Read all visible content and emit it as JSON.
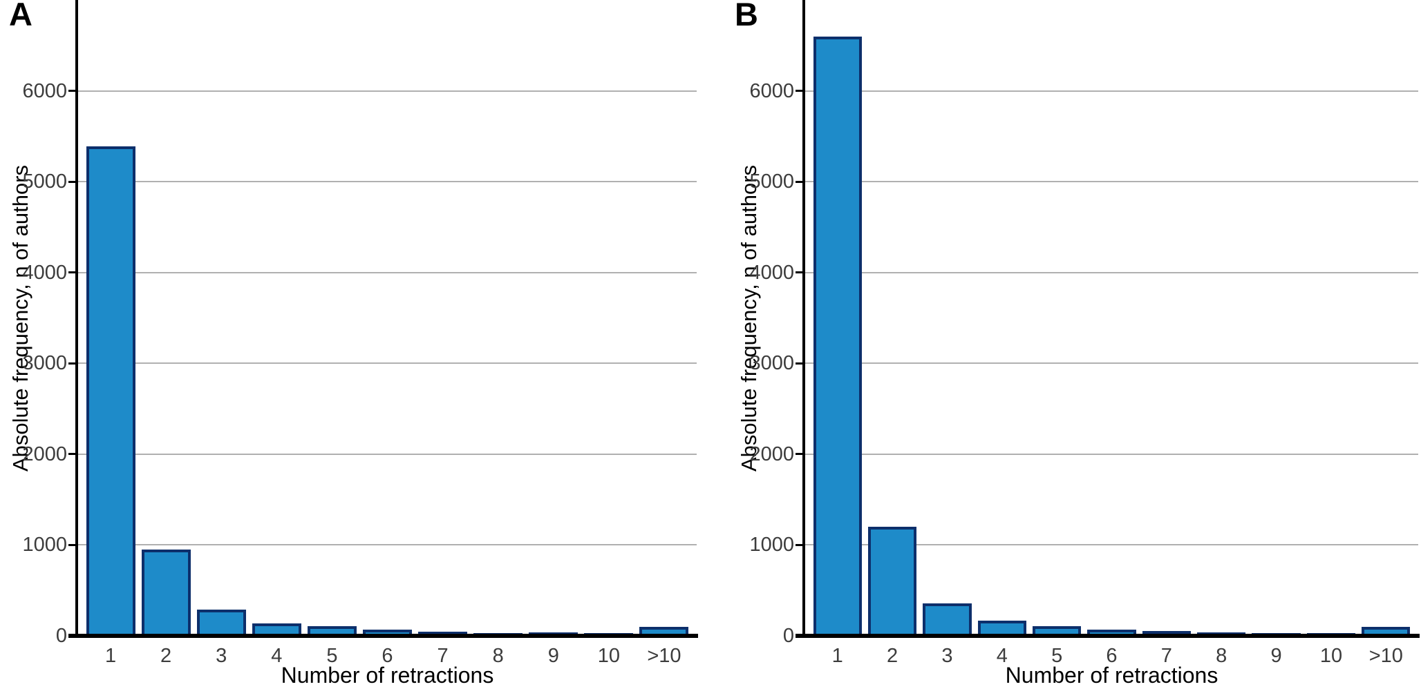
{
  "figure": {
    "background": "#ffffff",
    "bar_fill_color": "#1e8bc9",
    "bar_stroke_color": "#0d2f6b",
    "gridline_color": "#b0b0b0",
    "axis_color": "#000000",
    "tick_label_color": "#3c3c3c"
  },
  "chart_data": [
    {
      "type": "bar",
      "panel_label": "A",
      "title": "",
      "categories": [
        "1",
        "2",
        "3",
        "4",
        "5",
        "6",
        "7",
        "8",
        "9",
        "10",
        ">10"
      ],
      "values": [
        5390,
        950,
        290,
        135,
        105,
        70,
        45,
        25,
        35,
        12,
        100
      ],
      "xlabel": "Number of retractions",
      "ylabel": "Absolute frequency, n of authors",
      "ylim": [
        0,
        7000
      ],
      "yticks": [
        0,
        1000,
        2000,
        3000,
        4000,
        5000,
        6000
      ],
      "grid": "horizontal",
      "legend": "none",
      "bar_fill": "#1e8bc9",
      "bar_stroke": "#0d2f6b"
    },
    {
      "type": "bar",
      "panel_label": "B",
      "title": "",
      "categories": [
        "1",
        "2",
        "3",
        "4",
        "5",
        "6",
        "7",
        "8",
        "9",
        "10",
        ">10"
      ],
      "values": [
        6600,
        1200,
        360,
        165,
        110,
        65,
        50,
        35,
        30,
        15,
        100
      ],
      "xlabel": "Number of retractions",
      "ylabel": "Absolute frequency, n of authors",
      "ylim": [
        0,
        7000
      ],
      "yticks": [
        0,
        1000,
        2000,
        3000,
        4000,
        5000,
        6000
      ],
      "grid": "horizontal",
      "legend": "none",
      "bar_fill": "#1e8bc9",
      "bar_stroke": "#0d2f6b"
    }
  ]
}
